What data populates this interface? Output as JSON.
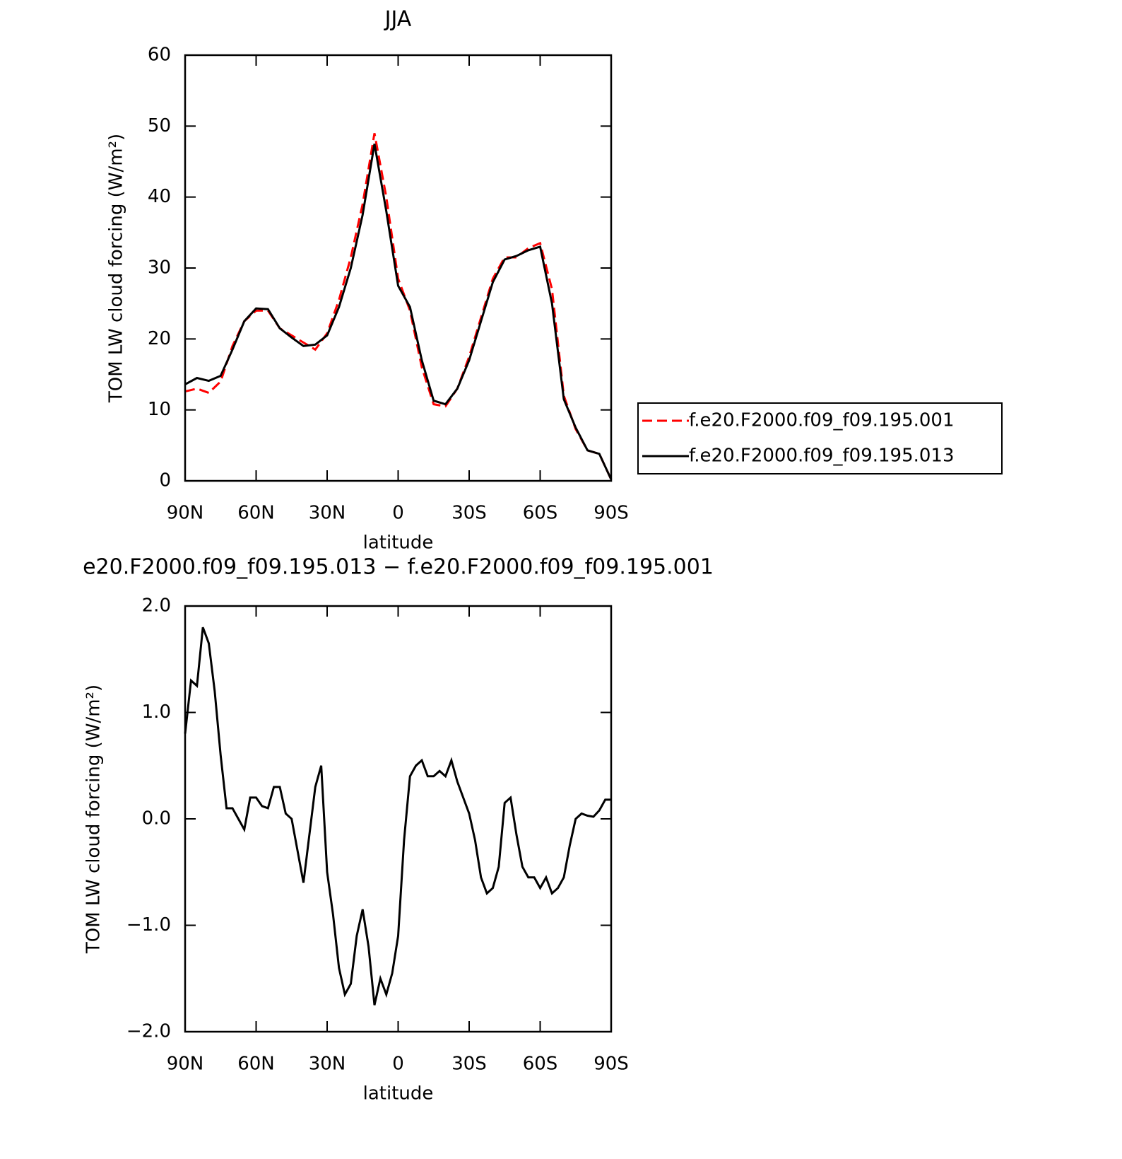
{
  "chart_data": [
    {
      "type": "line",
      "title": "JJA",
      "x_label": "latitude",
      "y_label": "TOM LW cloud forcing (W/m²)",
      "x": [
        90,
        85,
        80,
        75,
        70,
        65,
        60,
        55,
        50,
        45,
        40,
        35,
        30,
        25,
        20,
        15,
        10,
        5,
        0,
        -5,
        -10,
        -15,
        -20,
        -25,
        -30,
        -35,
        -40,
        -45,
        -50,
        -55,
        -60,
        -65,
        -70,
        -75,
        -80,
        -85,
        -90
      ],
      "series": [
        {
          "name": "f.e20.F2000.f09_f09.195.001",
          "color": "#ff0000",
          "line_style": "dashed",
          "values": [
            12.6,
            13,
            12.4,
            14,
            19,
            22.5,
            24,
            24,
            21.5,
            20.5,
            19.5,
            18.5,
            20.8,
            25.5,
            31.5,
            39,
            49,
            40,
            28.5,
            24,
            16,
            10.8,
            10.5,
            13,
            17.5,
            23,
            28.5,
            31.5,
            31.5,
            32.8,
            33.5,
            27,
            12,
            7.3,
            4.3,
            3.8,
            0.2
          ]
        },
        {
          "name": "f.e20.F2000.f09_f09.195.013",
          "color": "#000000",
          "line_style": "solid",
          "values": [
            13.6,
            14.5,
            14.1,
            14.8,
            18.5,
            22.5,
            24.3,
            24.2,
            21.5,
            20.2,
            19,
            19.2,
            20.5,
            24.5,
            30,
            37.5,
            47.5,
            38,
            27.5,
            24.5,
            17,
            11.3,
            10.8,
            13,
            17,
            22.5,
            28,
            31.2,
            31.7,
            32.5,
            33,
            25,
            11.5,
            7.5,
            4.3,
            3.8,
            0.2
          ]
        }
      ],
      "xlim": [
        90,
        -90
      ],
      "xticks": [
        {
          "value": 90,
          "label": "90N"
        },
        {
          "value": 60,
          "label": "60N"
        },
        {
          "value": 30,
          "label": "30N"
        },
        0,
        {
          "value": -30,
          "label": "30S"
        },
        {
          "value": -60,
          "label": "60S"
        },
        {
          "value": -90,
          "label": "90S"
        }
      ],
      "ylim": [
        0,
        60
      ],
      "yticks": [
        0,
        10,
        20,
        30,
        40,
        50,
        60
      ],
      "grid": false,
      "legend": "right"
    },
    {
      "type": "line",
      "title": "e20.F2000.f09_f09.195.013 − f.e20.F2000.f09_f09.195.001",
      "x_label": "latitude",
      "y_label": "TOM LW cloud forcing (W/m²)",
      "x": [
        90,
        87.5,
        85,
        82.5,
        80,
        77.5,
        75,
        72.5,
        70,
        67.5,
        65,
        62.5,
        60,
        57.5,
        55,
        52.5,
        50,
        47.5,
        45,
        42.5,
        40,
        37.5,
        35,
        32.5,
        30,
        27.5,
        25,
        22.5,
        20,
        17.5,
        15,
        12.5,
        10,
        7.5,
        5,
        2.5,
        0,
        -2.5,
        -5,
        -7.5,
        -10,
        -12.5,
        -15,
        -17.5,
        -20,
        -22.5,
        -25,
        -27.5,
        -30,
        -32.5,
        -35,
        -37.5,
        -40,
        -42.5,
        -45,
        -47.5,
        -50,
        -52.5,
        -55,
        -57.5,
        -60,
        -62.5,
        -65,
        -67.5,
        -70,
        -72.5,
        -75,
        -77.5,
        -80,
        -82.5,
        -85,
        -87.5,
        -90
      ],
      "values": [
        0.8,
        1.3,
        1.25,
        1.8,
        1.65,
        1.2,
        0.6,
        0.1,
        0.1,
        0.0,
        -0.1,
        0.2,
        0.2,
        0.12,
        0.1,
        0.3,
        0.3,
        0.05,
        0.0,
        -0.3,
        -0.6,
        -0.15,
        0.3,
        0.5,
        -0.5,
        -0.9,
        -1.4,
        -1.65,
        -1.55,
        -1.1,
        -0.85,
        -1.2,
        -1.75,
        -1.5,
        -1.65,
        -1.45,
        -1.1,
        -0.2,
        0.4,
        0.5,
        0.55,
        0.4,
        0.4,
        0.45,
        0.4,
        0.55,
        0.35,
        0.2,
        0.05,
        -0.2,
        -0.55,
        -0.7,
        -0.65,
        -0.45,
        0.15,
        0.2,
        -0.15,
        -0.45,
        -0.55,
        -0.55,
        -0.65,
        -0.55,
        -0.7,
        -0.65,
        -0.55,
        -0.25,
        0.0,
        0.05,
        0.03,
        0.02,
        0.08,
        0.18,
        0.18
      ],
      "color": "#000000",
      "line_style": "solid",
      "xlim": [
        90,
        -90
      ],
      "xticks": [
        {
          "value": 90,
          "label": "90N"
        },
        {
          "value": 60,
          "label": "60N"
        },
        {
          "value": 30,
          "label": "30N"
        },
        0,
        {
          "value": -30,
          "label": "30S"
        },
        {
          "value": -60,
          "label": "60S"
        },
        {
          "value": -90,
          "label": "90S"
        }
      ],
      "ylim": [
        -2,
        2
      ],
      "yticks": [
        {
          "value": -2,
          "label": "−2.0"
        },
        {
          "value": -1,
          "label": "−1.0"
        },
        {
          "value": 0,
          "label": "0.0"
        },
        {
          "value": 1,
          "label": "1.0"
        },
        {
          "value": 2,
          "label": "2.0"
        }
      ],
      "grid": false
    }
  ]
}
